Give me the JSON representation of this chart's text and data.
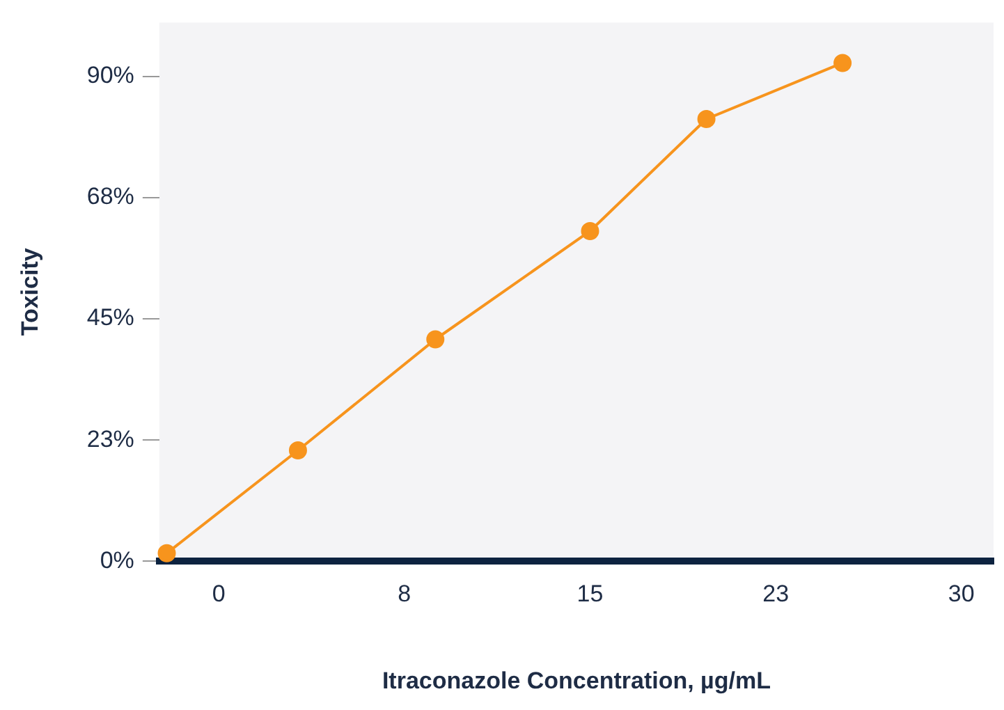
{
  "chart_data": {
    "type": "line",
    "xlabel": "Itraconazole Concentration, µg/mL",
    "ylabel": "Toxicity",
    "series": [
      {
        "color": "#f7941d",
        "x": [
          -2.1,
          3.2,
          8.75,
          15,
          19.7,
          25.2
        ],
        "values": [
          1.5,
          20.6,
          41.2,
          61.3,
          82.1,
          92.5
        ]
      }
    ],
    "xlim": [
      -2.4,
      31.3
    ],
    "xticks": [
      0,
      {
        "value": 7.5,
        "label": "8"
      },
      15,
      {
        "value": 22.5,
        "label": "23"
      },
      30
    ],
    "ylim": [
      0,
      100
    ],
    "yticks": [
      {
        "value": 0,
        "label": "0%"
      },
      {
        "value": 22.5,
        "label": "23%"
      },
      {
        "value": 45,
        "label": "45%"
      },
      {
        "value": 67.5,
        "label": "68%"
      },
      {
        "value": 90,
        "label": "90%"
      }
    ],
    "marker": "circle",
    "line_style": "solid",
    "grid": false,
    "legend": false
  }
}
